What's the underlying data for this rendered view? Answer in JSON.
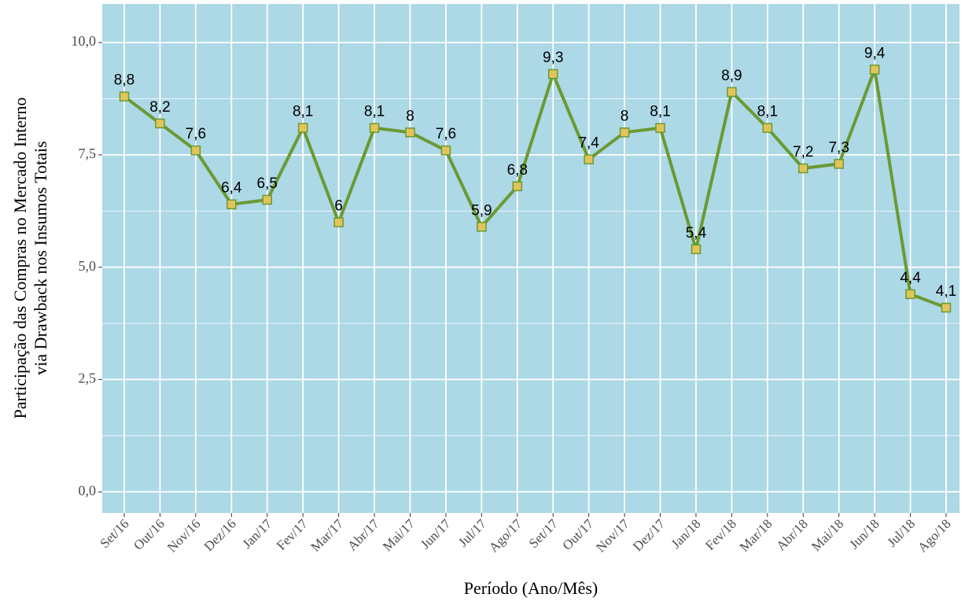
{
  "chart_data": {
    "type": "line",
    "xlabel": "Período (Ano/Mês)",
    "ylabel": [
      "Participação das Compras no Mercado Interno",
      "via Drawback nos Insumos Totais"
    ],
    "categories": [
      "Set/16",
      "Out/16",
      "Nov/16",
      "Dez/16",
      "Jan/17",
      "Fev/17",
      "Mar/17",
      "Abr/17",
      "Mai/17",
      "Jun/17",
      "Jul/17",
      "Ago/17",
      "Set/17",
      "Out/17",
      "Nov/17",
      "Dez/17",
      "Jan/18",
      "Fev/18",
      "Mar/18",
      "Abr/18",
      "Mai/18",
      "Jun/18",
      "Jul/18",
      "Ago/18"
    ],
    "series": [
      {
        "color": "#6a9a32",
        "marker_color": "#e3c45a",
        "values": [
          8.8,
          8.2,
          7.6,
          6.4,
          6.5,
          8.1,
          6,
          8.1,
          8,
          7.6,
          5.9,
          6.8,
          9.3,
          7.4,
          8,
          8.1,
          5.4,
          8.9,
          8.1,
          7.2,
          7.3,
          9.4,
          4.4,
          4.1
        ],
        "value_labels": [
          "8,8",
          "8,2",
          "7,6",
          "6,4",
          "6,5",
          "8,1",
          "6",
          "8,1",
          "8",
          "7,6",
          "5,9",
          "6,8",
          "9,3",
          "7,4",
          "8",
          "8,1",
          "5,4",
          "8,9",
          "8,1",
          "7,2",
          "7,3",
          "9,4",
          "4,4",
          "4,1"
        ]
      }
    ],
    "ylim": [
      -0.47,
      10.86
    ],
    "yticks": [
      {
        "value": 0,
        "label": "0,0"
      },
      {
        "value": 2.5,
        "label": "2,5"
      },
      {
        "value": 5,
        "label": "5,0"
      },
      {
        "value": 7.5,
        "label": "7,5"
      },
      {
        "value": 10,
        "label": "10,0"
      }
    ],
    "grid": true,
    "background": "#add8e6"
  }
}
